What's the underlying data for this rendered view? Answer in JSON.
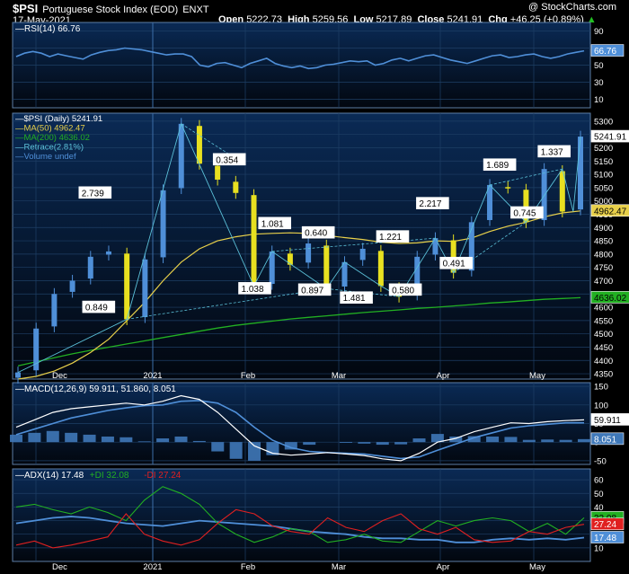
{
  "header": {
    "symbol": "$PSI",
    "name": "Portuguese Stock Index (EOD)",
    "exchange": "ENXT",
    "date": "17-May-2021",
    "watermark": "@ StockCharts.com",
    "open_label": "Open",
    "open": "5222.73",
    "high_label": "High",
    "high": "5259.56",
    "low_label": "Low",
    "low": "5217.89",
    "close_label": "Close",
    "close": "5241.91",
    "chg_label": "Chg",
    "chg": "+46.25 (+0.89%)",
    "up_arrow": "▲"
  },
  "colors": {
    "background": "#000000",
    "panel": "#061a33",
    "grid": "#1e3f66",
    "up": "#4f8fd8",
    "down": "#e8e020",
    "ma50": "#e8d04a",
    "ma200": "#22b022",
    "rsi": "#4f8fd8",
    "macd": "#ffffff",
    "signal": "#4f8fd8",
    "adx": "#4f8fd8",
    "plus_di": "#22b022",
    "minus_di": "#e02020",
    "retrace": "#5bc0d8"
  },
  "chart_data": [
    {
      "type": "line",
      "title": "RSI(14) 66.76",
      "legend": [
        "RSI(14) 66.76"
      ],
      "yticks": [
        10,
        30,
        50,
        70,
        90
      ],
      "ylim": [
        0,
        100
      ],
      "last_value_label": "66.76",
      "series": [
        {
          "name": "RSI(14)",
          "values": [
            60,
            64,
            66,
            64,
            60,
            63,
            61,
            59,
            57,
            62,
            65,
            67,
            68,
            70,
            69,
            68,
            66,
            64,
            62,
            63,
            63,
            60,
            50,
            48,
            52,
            53,
            50,
            47,
            52,
            55,
            58,
            52,
            49,
            47,
            49,
            46,
            47,
            50,
            51,
            53,
            55,
            54,
            55,
            50,
            52,
            56,
            58,
            55,
            58,
            61,
            62,
            59,
            56,
            54,
            52,
            55,
            58,
            61,
            62,
            59,
            60,
            62,
            63,
            60,
            58,
            60,
            63,
            65,
            66.76
          ]
        }
      ]
    },
    {
      "type": "candlestick",
      "legend": [
        "$PSI (Daily) 5241.91",
        "MA(50) 4962.47",
        "MA(200) 4636.02",
        "Retrace(2.81%)",
        "Volume undef"
      ],
      "yticks": [
        4350,
        4400,
        4450,
        4500,
        4550,
        4600,
        4650,
        4700,
        4750,
        4800,
        4850,
        4900,
        4950,
        5000,
        5050,
        5100,
        5150,
        5200,
        5250,
        5300
      ],
      "ylim": [
        4330,
        5330
      ],
      "xticks": [
        "Dec",
        "2021",
        "Feb",
        "Mar",
        "Apr",
        "May"
      ],
      "x": [
        "2020-11-19",
        "2020-11-25",
        "2020-12-01",
        "2020-12-07",
        "2020-12-11",
        "2020-12-17",
        "2020-12-23",
        "2021-01-04",
        "2021-01-08",
        "2021-01-14",
        "2021-01-20",
        "2021-01-26",
        "2021-02-01",
        "2021-02-05",
        "2021-02-11",
        "2021-02-17",
        "2021-02-23",
        "2021-03-01",
        "2021-03-05",
        "2021-03-11",
        "2021-03-17",
        "2021-03-23",
        "2021-03-29",
        "2021-04-07",
        "2021-04-13",
        "2021-04-19",
        "2021-04-23",
        "2021-04-29",
        "2021-05-05",
        "2021-05-11",
        "2021-05-14",
        "2021-05-17"
      ],
      "close": [
        4355,
        4520,
        4650,
        4700,
        4790,
        4810,
        4555,
        4780,
        5040,
        5290,
        5140,
        5080,
        5030,
        4680,
        4810,
        4760,
        4840,
        4670,
        4770,
        4820,
        4680,
        4640,
        4790,
        4860,
        4730,
        4920,
        5060,
        5050,
        4920,
        5120,
        4960,
        5241.91
      ],
      "last_price_label": "5241.91",
      "ma50_label": "4962.47",
      "ma200_label": "4636.02",
      "retracements": [
        "2.739",
        "0.849",
        "0.354",
        "1.038",
        "1.081",
        "0.897",
        "0.640",
        "1.481",
        "1.221",
        "0.580",
        "2.217",
        "0.491",
        "1.689",
        "0.745",
        "1.337"
      ]
    },
    {
      "type": "line",
      "title": "MACD(12,26,9) 59.911, 51.860, 8.051",
      "legend": [
        "MACD(12,26,9) 59.911, 51.860, 8.051"
      ],
      "yticks": [
        -50,
        0,
        50,
        100,
        150
      ],
      "ylim": [
        -60,
        160
      ],
      "last_labels": [
        "59.911",
        "8.051"
      ],
      "series": [
        {
          "name": "MACD",
          "values": [
            40,
            60,
            80,
            90,
            95,
            100,
            105,
            100,
            110,
            125,
            115,
            80,
            35,
            -10,
            -30,
            -35,
            -32,
            -28,
            -32,
            -36,
            -45,
            -50,
            -30,
            0,
            10,
            28,
            40,
            52,
            50,
            55,
            58,
            59.911
          ]
        },
        {
          "name": "Signal",
          "values": [
            20,
            35,
            50,
            65,
            75,
            85,
            92,
            98,
            100,
            110,
            112,
            105,
            80,
            40,
            5,
            -15,
            -25,
            -28,
            -30,
            -32,
            -38,
            -44,
            -40,
            -22,
            -5,
            12,
            25,
            38,
            44,
            48,
            52,
            51.86
          ]
        },
        {
          "name": "Histogram",
          "values": [
            20,
            25,
            30,
            25,
            20,
            15,
            13,
            2,
            10,
            15,
            3,
            -25,
            -45,
            -50,
            -35,
            -20,
            -7,
            0,
            -2,
            -4,
            -7,
            -6,
            10,
            22,
            15,
            16,
            15,
            14,
            6,
            7,
            6,
            8.051
          ]
        }
      ]
    },
    {
      "type": "line",
      "title": "ADX(14) 17.48 +DI 32.08 -DI 27.24",
      "legend": [
        "ADX(14) 17.48",
        "+DI 32.08",
        "-DI 27.24"
      ],
      "yticks": [
        10,
        20,
        30,
        40,
        50,
        60
      ],
      "ylim": [
        0,
        68
      ],
      "last_labels": [
        "32.08",
        "27.24",
        "17.48"
      ],
      "series": [
        {
          "name": "ADX(14)",
          "values": [
            28,
            30,
            32,
            33,
            32,
            30,
            28,
            27,
            26,
            28,
            30,
            29,
            28,
            27,
            26,
            24,
            22,
            21,
            20,
            18,
            17,
            17,
            16,
            16,
            14,
            14,
            16,
            17,
            16,
            17,
            16,
            17.48
          ]
        },
        {
          "name": "+DI",
          "values": [
            40,
            42,
            38,
            35,
            40,
            36,
            30,
            45,
            55,
            50,
            42,
            28,
            20,
            14,
            18,
            24,
            22,
            14,
            16,
            20,
            15,
            14,
            22,
            30,
            26,
            30,
            32,
            30,
            22,
            28,
            20,
            32.08
          ]
        },
        {
          "name": "-DI",
          "values": [
            12,
            15,
            10,
            12,
            15,
            18,
            35,
            20,
            15,
            12,
            16,
            28,
            38,
            35,
            26,
            22,
            20,
            32,
            25,
            22,
            30,
            35,
            24,
            20,
            25,
            16,
            14,
            15,
            22,
            20,
            25,
            27.24
          ]
        }
      ]
    }
  ]
}
